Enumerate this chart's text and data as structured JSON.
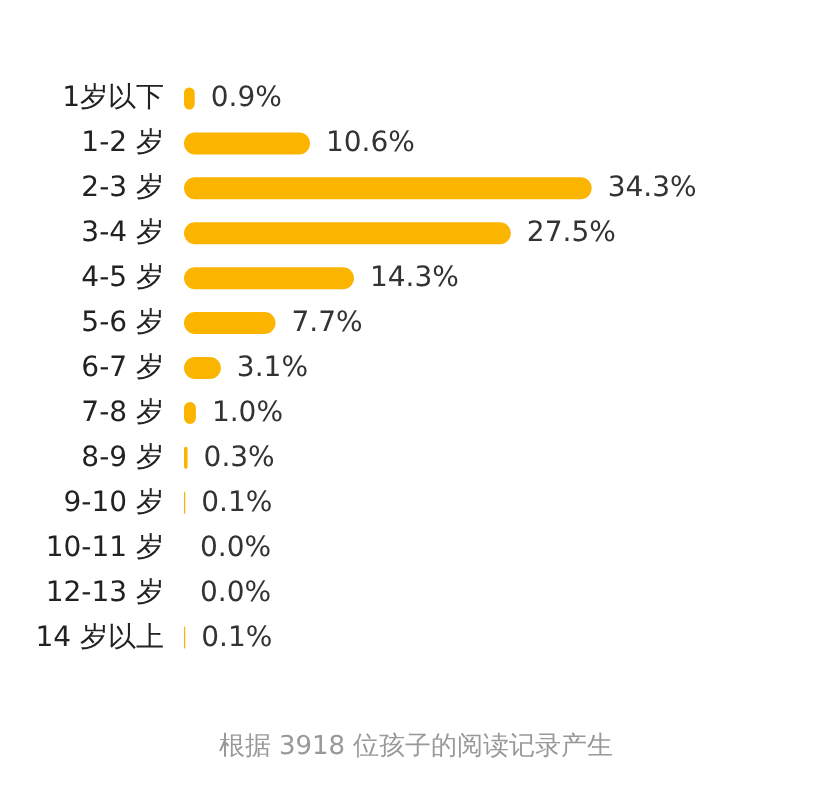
{
  "chart_data": {
    "type": "bar",
    "orientation": "horizontal",
    "categories": [
      "1岁以下",
      "1-2 岁",
      "2-3 岁",
      "3-4 岁",
      "4-5 岁",
      "5-6 岁",
      "6-7 岁",
      "7-8 岁",
      "8-9 岁",
      "9-10 岁",
      "10-11 岁",
      "12-13 岁",
      "14 岁以上"
    ],
    "values": [
      0.9,
      10.6,
      34.3,
      27.5,
      14.3,
      7.7,
      3.1,
      1.0,
      0.3,
      0.1,
      0.0,
      0.0,
      0.1
    ],
    "value_labels": [
      "0.9%",
      "10.6%",
      "34.3%",
      "27.5%",
      "14.3%",
      "7.7%",
      "3.1%",
      "1.0%",
      "0.3%",
      "0.1%",
      "0.0%",
      "0.0%",
      "0.1%"
    ],
    "color": "#fbb400",
    "annotations": [
      "根据 3918 位孩子的阅读记录产生"
    ]
  }
}
